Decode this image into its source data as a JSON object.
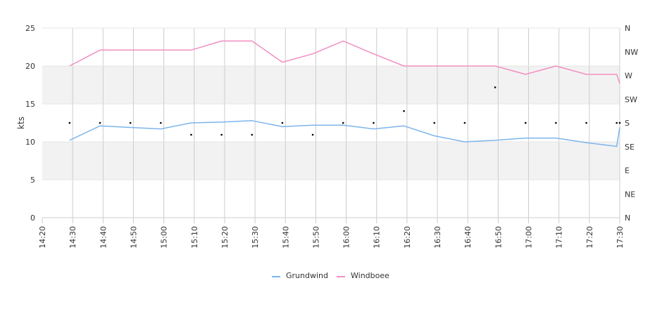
{
  "chart_data": {
    "type": "line",
    "ylabel": "kts",
    "ylim": [
      0,
      25
    ],
    "yticks": [
      "0",
      "5",
      "10",
      "15",
      "20",
      "25"
    ],
    "x_ticks": [
      "14:20",
      "14:30",
      "14:40",
      "14:50",
      "15:00",
      "15:10",
      "15:20",
      "15:30",
      "15:40",
      "15:50",
      "16:00",
      "16:10",
      "16:20",
      "16:30",
      "16:40",
      "16:50",
      "17:00",
      "17:10",
      "17:20",
      "17:30"
    ],
    "x_times": [
      "14:29",
      "14:39",
      "14:49",
      "14:59",
      "15:09",
      "15:19",
      "15:29",
      "15:39",
      "15:49",
      "15:59",
      "16:09",
      "16:19",
      "16:29",
      "16:39",
      "16:49",
      "16:59",
      "17:09",
      "17:19",
      "17:29",
      "17:30"
    ],
    "direction_axis": {
      "labels": [
        "N",
        "NE",
        "E",
        "SE",
        "S",
        "SW",
        "W",
        "NW",
        "N"
      ]
    },
    "bands": [
      [
        5,
        10
      ],
      [
        15,
        20
      ]
    ],
    "grid": true,
    "legend_position": "bottom",
    "series": [
      {
        "name": "Grundwind",
        "color": "#7cb5ec",
        "values": [
          10.2,
          12.1,
          11.9,
          11.7,
          12.5,
          12.6,
          12.8,
          12.0,
          12.2,
          12.2,
          11.7,
          12.1,
          10.8,
          10.0,
          10.2,
          10.5,
          10.5,
          9.9,
          9.4,
          11.9
        ]
      },
      {
        "name": "Windboee",
        "color": "#f28fc2",
        "values": [
          20.0,
          22.1,
          22.1,
          22.1,
          22.1,
          23.3,
          23.3,
          20.5,
          21.6,
          23.3,
          21.6,
          20.0,
          20.0,
          20.0,
          20.0,
          18.9,
          20.0,
          18.9,
          18.9,
          17.7
        ]
      }
    ],
    "direction_points": [
      {
        "time": "14:29",
        "dir": "S"
      },
      {
        "time": "14:39",
        "dir": "S"
      },
      {
        "time": "14:49",
        "dir": "S"
      },
      {
        "time": "14:59",
        "dir": "S"
      },
      {
        "time": "15:09",
        "dir": "SSE"
      },
      {
        "time": "15:19",
        "dir": "SSE"
      },
      {
        "time": "15:29",
        "dir": "SSE"
      },
      {
        "time": "15:39",
        "dir": "S"
      },
      {
        "time": "15:49",
        "dir": "SSE"
      },
      {
        "time": "15:59",
        "dir": "S"
      },
      {
        "time": "16:09",
        "dir": "S"
      },
      {
        "time": "16:19",
        "dir": "SSW"
      },
      {
        "time": "16:29",
        "dir": "S"
      },
      {
        "time": "16:39",
        "dir": "S"
      },
      {
        "time": "16:49",
        "dir": "WSW"
      },
      {
        "time": "16:59",
        "dir": "S"
      },
      {
        "time": "17:09",
        "dir": "S"
      },
      {
        "time": "17:19",
        "dir": "S"
      },
      {
        "time": "17:29",
        "dir": "S"
      },
      {
        "time": "17:30",
        "dir": "S"
      }
    ]
  }
}
